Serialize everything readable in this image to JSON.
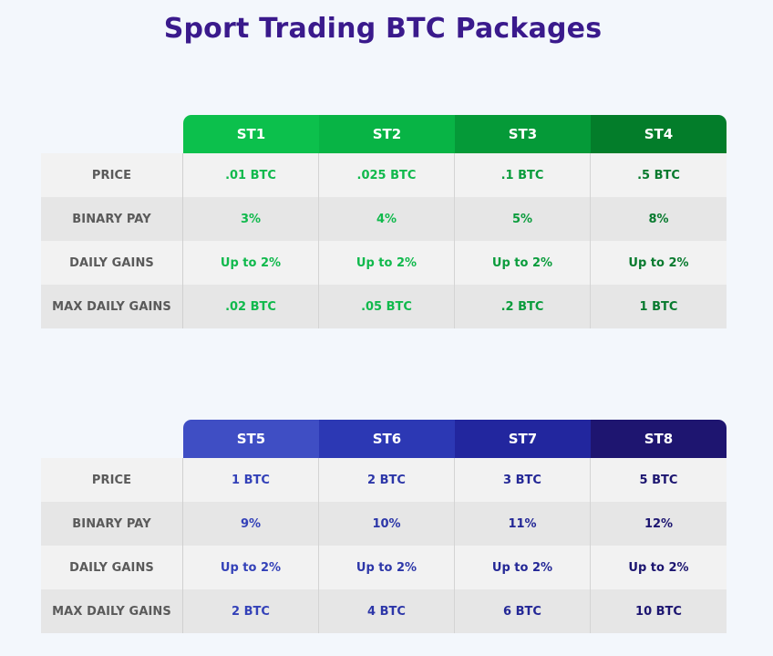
{
  "title": "Sport Trading BTC Packages",
  "row_labels": [
    "PRICE",
    "BINARY PAY",
    "DAILY GAINS",
    "MAX DAILY GAINS"
  ],
  "tables": [
    {
      "headers": [
        "ST1",
        "ST2",
        "ST3",
        "ST4"
      ],
      "header_colors": [
        "#0cc04c",
        "#08b445",
        "#059a38",
        "#037d2a"
      ],
      "value_colors": [
        "#10b94c",
        "#10b94c",
        "#0a9c3c",
        "#087a2e"
      ],
      "rows": [
        [
          ".01 BTC",
          ".025 BTC",
          ".1 BTC",
          ".5 BTC"
        ],
        [
          "3%",
          "4%",
          "5%",
          "8%"
        ],
        [
          "Up to 2%",
          "Up to 2%",
          "Up to 2%",
          "Up to 2%"
        ],
        [
          ".02 BTC",
          ".05 BTC",
          ".2 BTC",
          "1 BTC"
        ]
      ]
    },
    {
      "headers": [
        "ST5",
        "ST6",
        "ST7",
        "ST8"
      ],
      "header_colors": [
        "#3f4ec4",
        "#2c38b4",
        "#22269e",
        "#1e1570"
      ],
      "value_colors": [
        "#3341b8",
        "#2c36a8",
        "#232796",
        "#1c1570"
      ],
      "rows": [
        [
          "1 BTC",
          "2 BTC",
          "3 BTC",
          "5 BTC"
        ],
        [
          "9%",
          "10%",
          "11%",
          "12%"
        ],
        [
          "Up to 2%",
          "Up to 2%",
          "Up to 2%",
          "Up to 2%"
        ],
        [
          "2 BTC",
          "4 BTC",
          "6 BTC",
          "10 BTC"
        ]
      ]
    }
  ]
}
